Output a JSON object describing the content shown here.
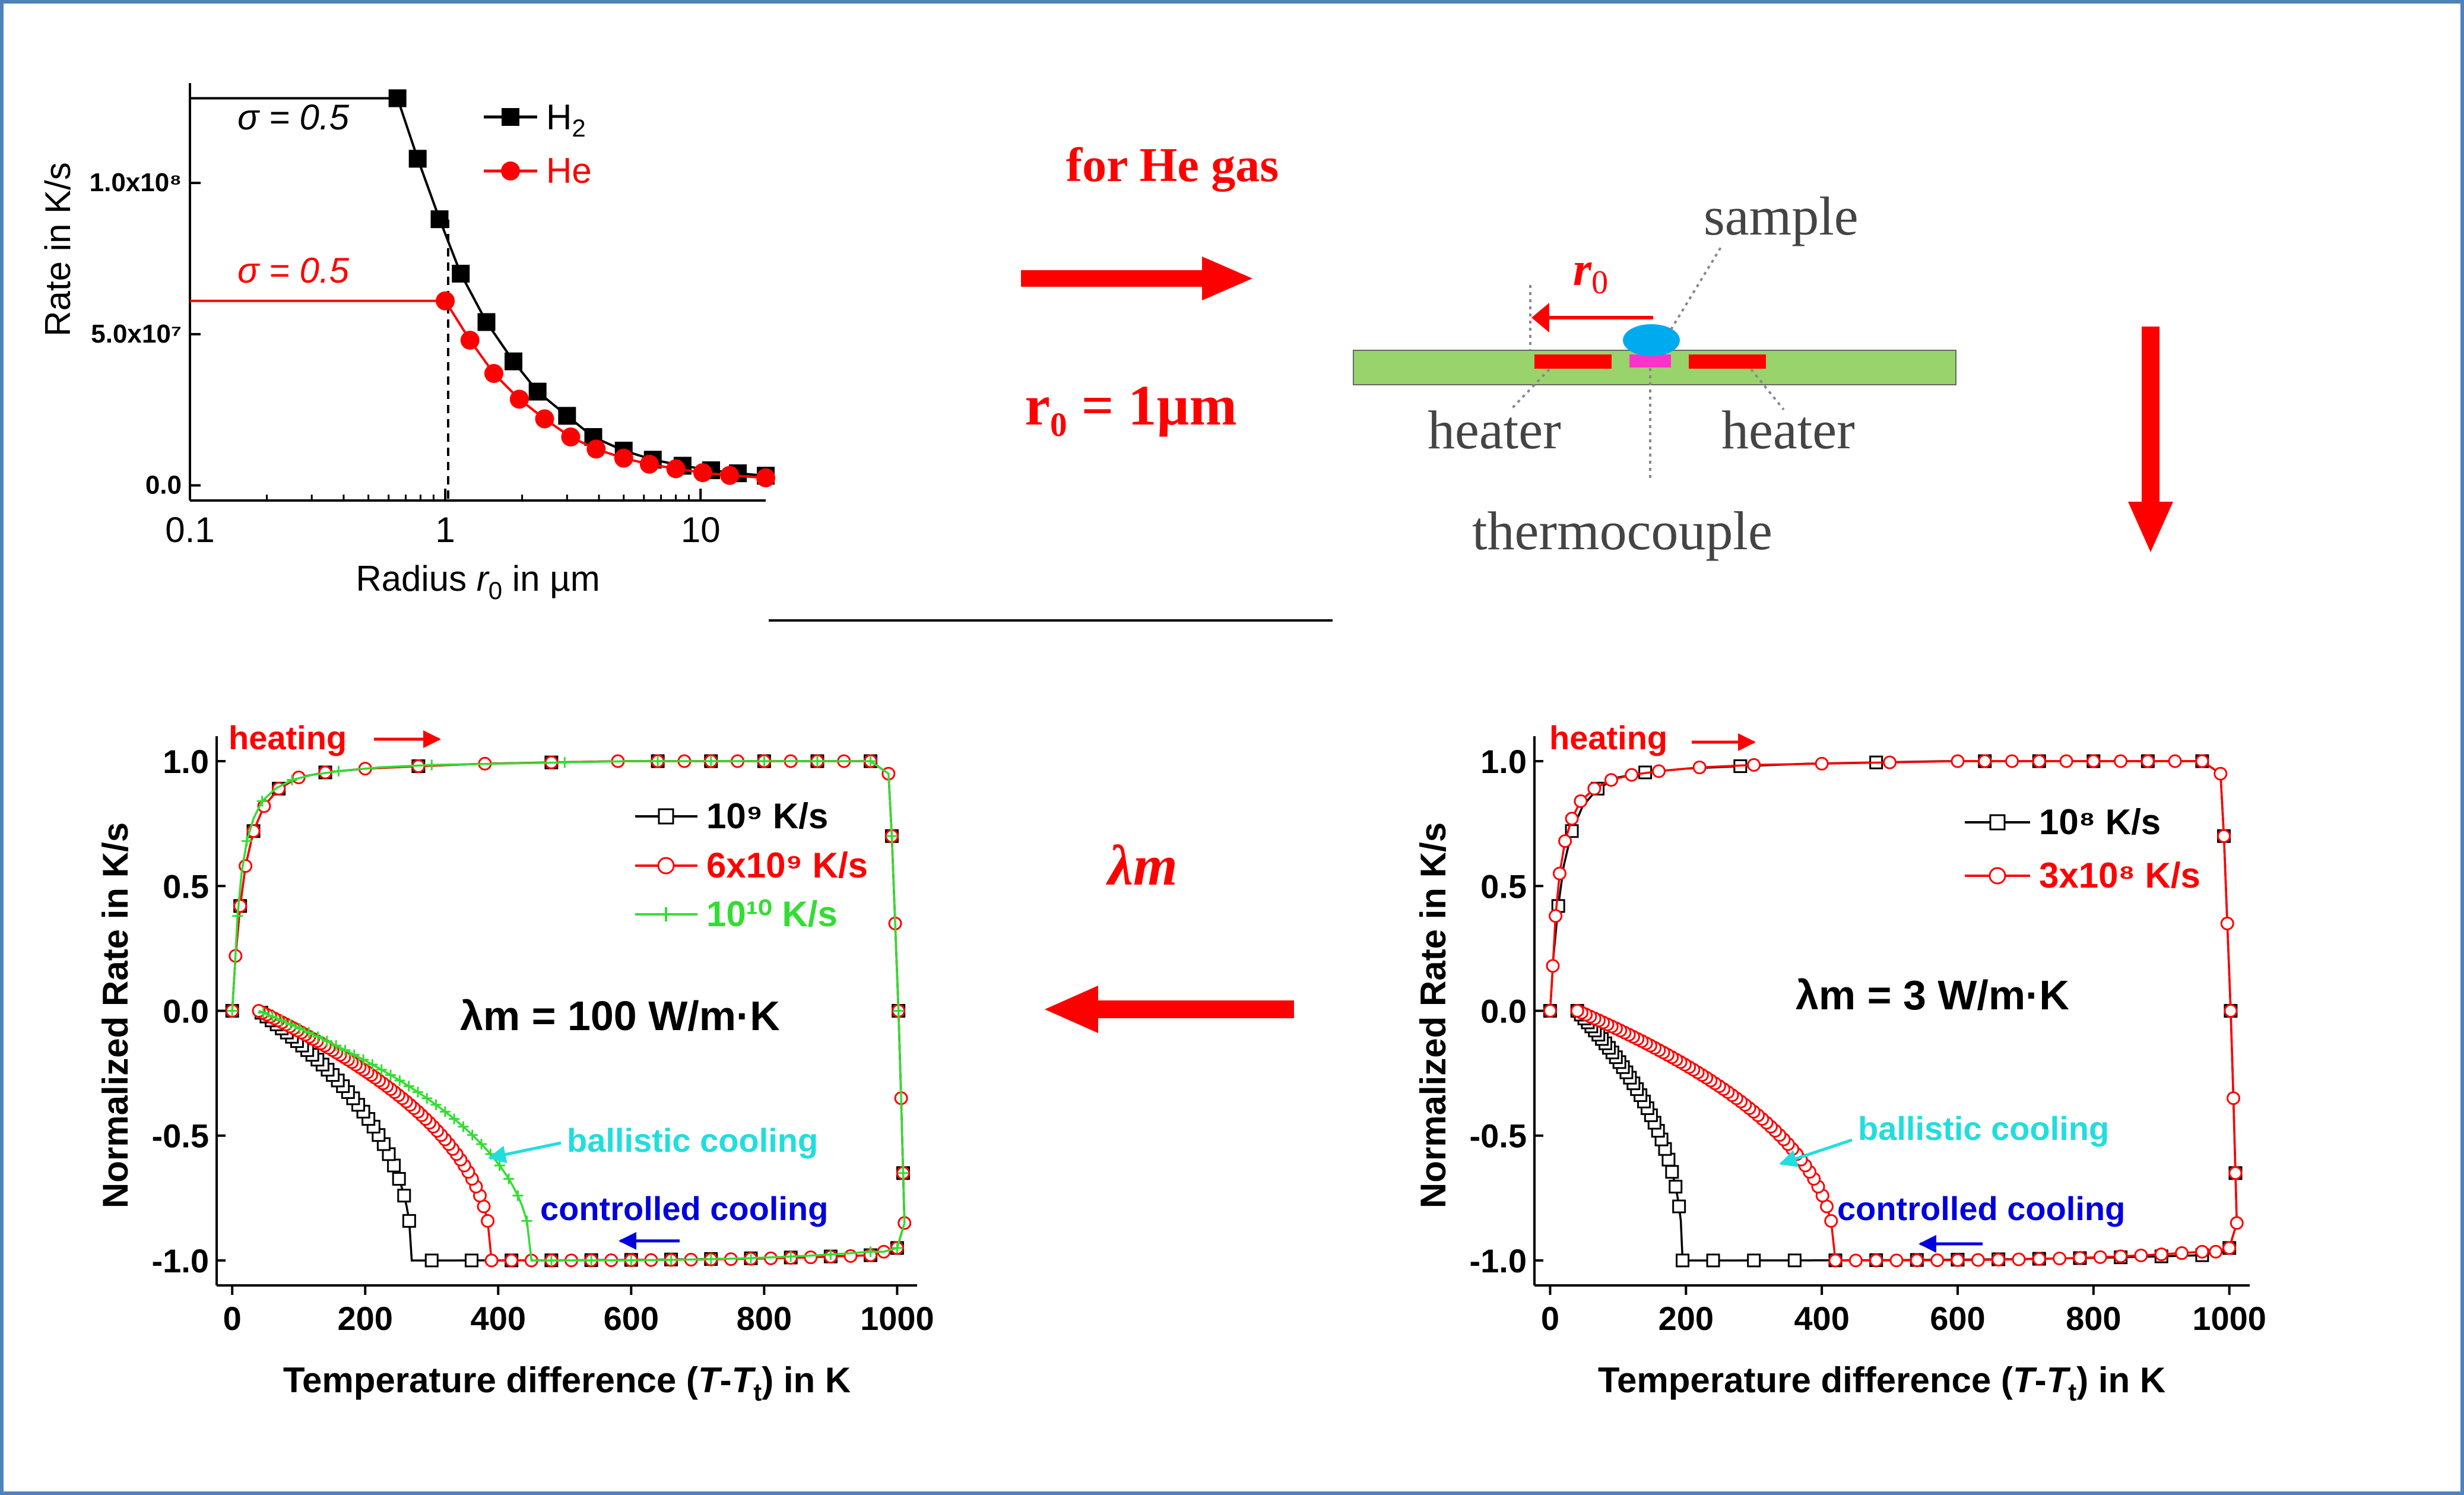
{
  "colors": {
    "border": "#4f81bd",
    "black": "#000000",
    "red": "#ff0000",
    "green": "#33dd33",
    "cyan": "#22dddd",
    "blue": "#0000dd",
    "substrate": "#99d36b",
    "sample": "#00aaee",
    "thermo": "#ff33cc"
  },
  "flow": {
    "he_gas": "for He gas",
    "r0_eq": "r₀ = 1µm",
    "lambda_m": "λm"
  },
  "schematic": {
    "sample": "sample",
    "heater_left": "heater",
    "heater_right": "heater",
    "thermocouple": "thermocouple",
    "r0_label": "r0"
  },
  "chart_data": [
    {
      "type": "line",
      "title": "",
      "xlabel": "Radius r0 in µm",
      "ylabel": "Rate in K/s",
      "xscale": "log",
      "xlim": [
        0.1,
        18
      ],
      "ylim": [
        -5000000.0,
        133000000.0
      ],
      "xticks": [
        "0.1",
        "1",
        "10"
      ],
      "yticks": [
        "0.0",
        "5.0x10⁷",
        "1.0x10⁸"
      ],
      "annotations": [
        "σ = 0.5",
        "σ = 0.5"
      ],
      "legend": "top-right",
      "series": [
        {
          "name": "H2",
          "color": "#000000",
          "marker": "square",
          "flat_x": [
            0.1,
            0.65
          ],
          "flat_y": 128000000.0,
          "x": [
            0.65,
            0.78,
            0.95,
            1.15,
            1.45,
            1.85,
            2.3,
            3.0,
            3.8,
            5.0,
            6.5,
            8.5,
            11.0,
            14.0,
            18.0
          ],
          "y": [
            128000000.0,
            108000000.0,
            88000000.0,
            70000000.0,
            54000000.0,
            41000000.0,
            31000000.0,
            23000000.0,
            16000000.0,
            11500000.0,
            8500000.0,
            6500000.0,
            5000000.0,
            4000000.0,
            3200000.0
          ]
        },
        {
          "name": "He",
          "color": "#ff0000",
          "marker": "circle",
          "flat_x": [
            0.1,
            1.0
          ],
          "flat_y": 61000000.0,
          "x": [
            1.0,
            1.25,
            1.55,
            1.95,
            2.45,
            3.1,
            3.9,
            5.0,
            6.3,
            8.0,
            10.2,
            13.0,
            18.0
          ],
          "y": [
            61000000.0,
            48000000.0,
            37000000.0,
            28500000.0,
            22000000.0,
            16000000.0,
            12000000.0,
            9000000.0,
            7000000.0,
            5500000.0,
            4200000.0,
            3300000.0,
            2500000.0
          ]
        }
      ]
    },
    {
      "type": "line",
      "title": "",
      "xlabel": "Temperature difference (T-Tt)  in K",
      "ylabel": "Normalized Rate in K/s",
      "xlim": [
        -10,
        1030
      ],
      "ylim": [
        -1.1,
        1.1
      ],
      "xticks": [
        "0",
        "200",
        "400",
        "600",
        "800",
        "1000"
      ],
      "yticks": [
        "-1.0",
        "-0.5",
        "0.0",
        "0.5",
        "1.0"
      ],
      "annotations": [
        "heating",
        "ballistic cooling",
        "controlled cooling",
        "λm = 100 W/m·K"
      ],
      "legend": "top-right",
      "series": [
        {
          "name": "10⁹ K/s",
          "color": "#000000",
          "marker": "open-square",
          "cooling_end": 270
        },
        {
          "name": "6x10⁹ K/s",
          "color": "#ff0000",
          "marker": "open-circle",
          "cooling_end": 390
        },
        {
          "name": "10¹⁰ K/s",
          "color": "#33dd33",
          "marker": "plus",
          "cooling_end": 450
        }
      ]
    },
    {
      "type": "line",
      "title": "",
      "xlabel": "Temperature difference (T-Tt)  in K",
      "ylabel": "Normalized Rate in K/s",
      "xlim": [
        -10,
        1030
      ],
      "ylim": [
        -1.1,
        1.1
      ],
      "xticks": [
        "0",
        "200",
        "400",
        "600",
        "800",
        "1000"
      ],
      "yticks": [
        "-1.0",
        "-0.5",
        "0.0",
        "0.5",
        "1.0"
      ],
      "annotations": [
        "heating",
        "ballistic cooling",
        "controlled cooling",
        "λm = 3 W/m·K"
      ],
      "legend": "top-right",
      "series": [
        {
          "name": "10⁸ K/s",
          "color": "#000000",
          "marker": "open-square",
          "cooling_end": 195
        },
        {
          "name": "3x10⁸ K/s",
          "color": "#ff0000",
          "marker": "open-circle",
          "cooling_end": 420
        }
      ]
    }
  ]
}
